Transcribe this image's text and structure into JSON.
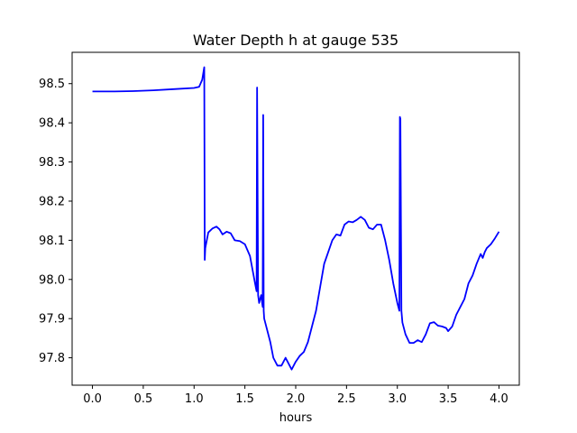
{
  "chart_data": {
    "type": "line",
    "title": "Water Depth h at gauge 535",
    "xlabel": "hours",
    "ylabel": "",
    "xlim": [
      -0.2,
      4.2
    ],
    "ylim": [
      97.73,
      98.58
    ],
    "xticks": [
      0.0,
      0.5,
      1.0,
      1.5,
      2.0,
      2.5,
      3.0,
      3.5,
      4.0
    ],
    "xtick_labels": [
      "0.0",
      "0.5",
      "1.0",
      "1.5",
      "2.0",
      "2.5",
      "3.0",
      "3.5",
      "4.0"
    ],
    "yticks": [
      97.8,
      97.9,
      98.0,
      98.1,
      98.2,
      98.3,
      98.4,
      98.5
    ],
    "ytick_labels": [
      "97.8",
      "97.9",
      "98.0",
      "98.1",
      "98.2",
      "98.3",
      "98.4",
      "98.5"
    ],
    "grid": false,
    "series": [
      {
        "color": "#0000ff",
        "x": [
          0.0,
          0.2,
          0.4,
          0.6,
          0.8,
          1.0,
          1.05,
          1.08,
          1.1,
          1.105,
          1.11,
          1.14,
          1.18,
          1.22,
          1.25,
          1.28,
          1.32,
          1.36,
          1.4,
          1.45,
          1.5,
          1.55,
          1.6,
          1.615,
          1.62,
          1.63,
          1.64,
          1.66,
          1.675,
          1.68,
          1.685,
          1.69,
          1.72,
          1.75,
          1.78,
          1.82,
          1.86,
          1.9,
          1.92,
          1.96,
          2.0,
          2.04,
          2.08,
          2.12,
          2.16,
          2.2,
          2.24,
          2.28,
          2.32,
          2.36,
          2.4,
          2.44,
          2.48,
          2.52,
          2.56,
          2.6,
          2.64,
          2.68,
          2.72,
          2.76,
          2.8,
          2.84,
          2.88,
          2.92,
          2.96,
          3.0,
          3.02,
          3.025,
          3.03,
          3.04,
          3.05,
          3.08,
          3.12,
          3.16,
          3.2,
          3.24,
          3.28,
          3.32,
          3.36,
          3.4,
          3.44,
          3.48,
          3.5,
          3.54,
          3.58,
          3.62,
          3.66,
          3.7,
          3.74,
          3.78,
          3.82,
          3.84,
          3.86,
          3.88,
          3.92,
          3.96,
          4.0
        ],
        "y": [
          98.48,
          98.48,
          98.481,
          98.483,
          98.486,
          98.489,
          98.492,
          98.51,
          98.542,
          98.05,
          98.08,
          98.12,
          98.13,
          98.135,
          98.128,
          98.115,
          98.122,
          98.118,
          98.1,
          98.098,
          98.09,
          98.06,
          97.99,
          97.97,
          98.49,
          97.96,
          97.94,
          97.96,
          97.93,
          98.42,
          97.92,
          97.9,
          97.87,
          97.84,
          97.8,
          97.78,
          97.78,
          97.8,
          97.79,
          97.77,
          97.79,
          97.805,
          97.815,
          97.84,
          97.88,
          97.92,
          97.98,
          98.04,
          98.07,
          98.1,
          98.115,
          98.112,
          98.14,
          98.148,
          98.146,
          98.152,
          98.16,
          98.152,
          98.132,
          98.128,
          98.14,
          98.14,
          98.1,
          98.05,
          97.99,
          97.94,
          97.92,
          98.415,
          98.41,
          97.92,
          97.89,
          97.86,
          97.838,
          97.838,
          97.845,
          97.84,
          97.86,
          97.888,
          97.891,
          97.882,
          97.88,
          97.876,
          97.868,
          97.88,
          97.91,
          97.93,
          97.95,
          97.99,
          98.01,
          98.04,
          98.065,
          98.055,
          98.07,
          98.08,
          98.09,
          98.105,
          98.122
        ]
      }
    ]
  }
}
